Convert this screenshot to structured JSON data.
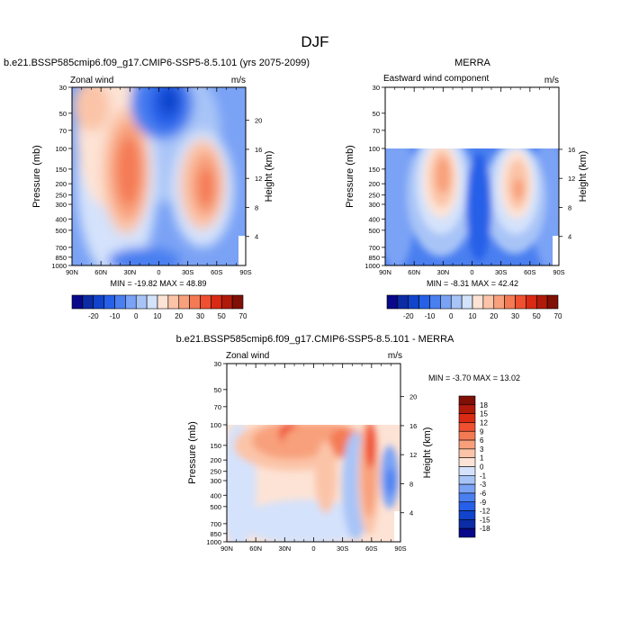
{
  "figure": {
    "title": "DJF"
  },
  "chart_data": [
    {
      "type": "heatmap",
      "panel": "model",
      "title": "b.e21.BSSP585cmip6.f09_g17.CMIP6-SSP5-8.5.101 (yrs 2075-2099)",
      "left_label": "Zonal wind",
      "units_label": "m/s",
      "ylabel": "Pressure (mb)",
      "ylabel_right": "Height (km)",
      "x_ticks": [
        "90N",
        "60N",
        "30N",
        "0",
        "30S",
        "60S",
        "90S"
      ],
      "y_ticks": [
        "30",
        "50",
        "70",
        "100",
        "150",
        "200",
        "250",
        "300",
        "400",
        "500",
        "700",
        "850",
        "1000"
      ],
      "height_ticks": [
        "20",
        "16",
        "12",
        "8",
        "4"
      ],
      "y_scale": "log",
      "min_max_text": "MIN = -19.82  MAX = 48.89",
      "colorbar": {
        "orientation": "horizontal",
        "labels": [
          "-20",
          "-10",
          "0",
          "10",
          "20",
          "30",
          "50",
          "70"
        ],
        "colors": [
          "#08088a",
          "#0c2ca5",
          "#1144cc",
          "#2660e8",
          "#4a7ff0",
          "#7aa2f5",
          "#a8c4f7",
          "#d4e2fb",
          "#fde3d5",
          "#fbc4a8",
          "#f8a07c",
          "#f47a54",
          "#ef5030",
          "#d92a14",
          "#b01a0a",
          "#800f05"
        ]
      },
      "features": [
        {
          "name": "nh-subtropical-westerly-jet",
          "lat": 30,
          "pressure": 190,
          "max": 48.89
        },
        {
          "name": "sh-westerly-jet",
          "lat": -50,
          "pressure": 230,
          "max": 35
        },
        {
          "name": "nh-stratospheric-westerly",
          "lat": 65,
          "pressure": 40,
          "max": 25
        },
        {
          "name": "tropical-stratospheric-easterly",
          "lat": 0,
          "pressure": 40,
          "min": -19.82
        }
      ]
    },
    {
      "type": "heatmap",
      "panel": "obs",
      "title": "MERRA",
      "left_label": "Eastward wind component",
      "units_label": "m/s",
      "ylabel": "Pressure (mb)",
      "ylabel_right": "Height (km)",
      "x_ticks": [
        "90N",
        "60N",
        "30N",
        "0",
        "30S",
        "60S",
        "90S"
      ],
      "y_ticks": [
        "30",
        "50",
        "70",
        "100",
        "150",
        "200",
        "250",
        "300",
        "400",
        "500",
        "700",
        "850",
        "1000"
      ],
      "height_ticks": [
        "16",
        "12",
        "8",
        "4"
      ],
      "y_scale": "log",
      "data_top_pressure": 100,
      "min_max_text": "MIN = -8.31  MAX = 42.42",
      "colorbar": {
        "orientation": "horizontal",
        "labels": [
          "-20",
          "-10",
          "0",
          "10",
          "20",
          "30",
          "50",
          "70"
        ],
        "colors": [
          "#08088a",
          "#0c2ca5",
          "#1144cc",
          "#2660e8",
          "#4a7ff0",
          "#7aa2f5",
          "#a8c4f7",
          "#d4e2fb",
          "#fde3d5",
          "#fbc4a8",
          "#f8a07c",
          "#f47a54",
          "#ef5030",
          "#d92a14",
          "#b01a0a",
          "#800f05"
        ]
      },
      "features": [
        {
          "name": "nh-subtropical-westerly-jet",
          "lat": 30,
          "pressure": 200,
          "max": 42.42
        },
        {
          "name": "sh-westerly-jet",
          "lat": -45,
          "pressure": 230,
          "max": 35
        },
        {
          "name": "tropical-easterly",
          "lat": 5,
          "pressure": 150,
          "min": -8.31
        }
      ]
    },
    {
      "type": "heatmap",
      "panel": "difference",
      "title": "b.e21.BSSP585cmip6.f09_g17.CMIP6-SSP5-8.5.101 - MERRA",
      "left_label": "Zonal wind",
      "units_label": "m/s",
      "ylabel": "Pressure (mb)",
      "ylabel_right": "Height (km)",
      "x_ticks": [
        "90N",
        "60N",
        "30N",
        "0",
        "30S",
        "60S",
        "90S"
      ],
      "y_ticks": [
        "30",
        "50",
        "70",
        "100",
        "150",
        "200",
        "250",
        "300",
        "400",
        "500",
        "700",
        "850",
        "1000"
      ],
      "height_ticks": [
        "20",
        "16",
        "12",
        "8",
        "4"
      ],
      "y_scale": "log",
      "data_top_pressure": 100,
      "min_max_text": "MIN = -3.70  MAX = 13.02",
      "colorbar": {
        "orientation": "vertical",
        "labels": [
          "18",
          "15",
          "12",
          "9",
          "6",
          "3",
          "1",
          "0",
          "-1",
          "-3",
          "-6",
          "-9",
          "-12",
          "-15",
          "-18"
        ],
        "colors": [
          "#800f05",
          "#b01a0a",
          "#d92a14",
          "#ef5030",
          "#f47a54",
          "#f8a07c",
          "#fbc4a8",
          "#fde3d5",
          "#d4e2fb",
          "#a8c4f7",
          "#7aa2f5",
          "#4a7ff0",
          "#2660e8",
          "#1144cc",
          "#0c2ca5",
          "#08088a"
        ]
      },
      "features": [
        {
          "name": "positive-bias-upper-troposphere",
          "lat": 20,
          "pressure": 110,
          "max": 13.02
        },
        {
          "name": "positive-bias-sh-midlatitude",
          "lat": -55,
          "pressure": 150,
          "max": 10
        },
        {
          "name": "negative-bias-sh-high-latitude",
          "lat": -72,
          "pressure": 350,
          "min": -3.7
        }
      ]
    }
  ]
}
